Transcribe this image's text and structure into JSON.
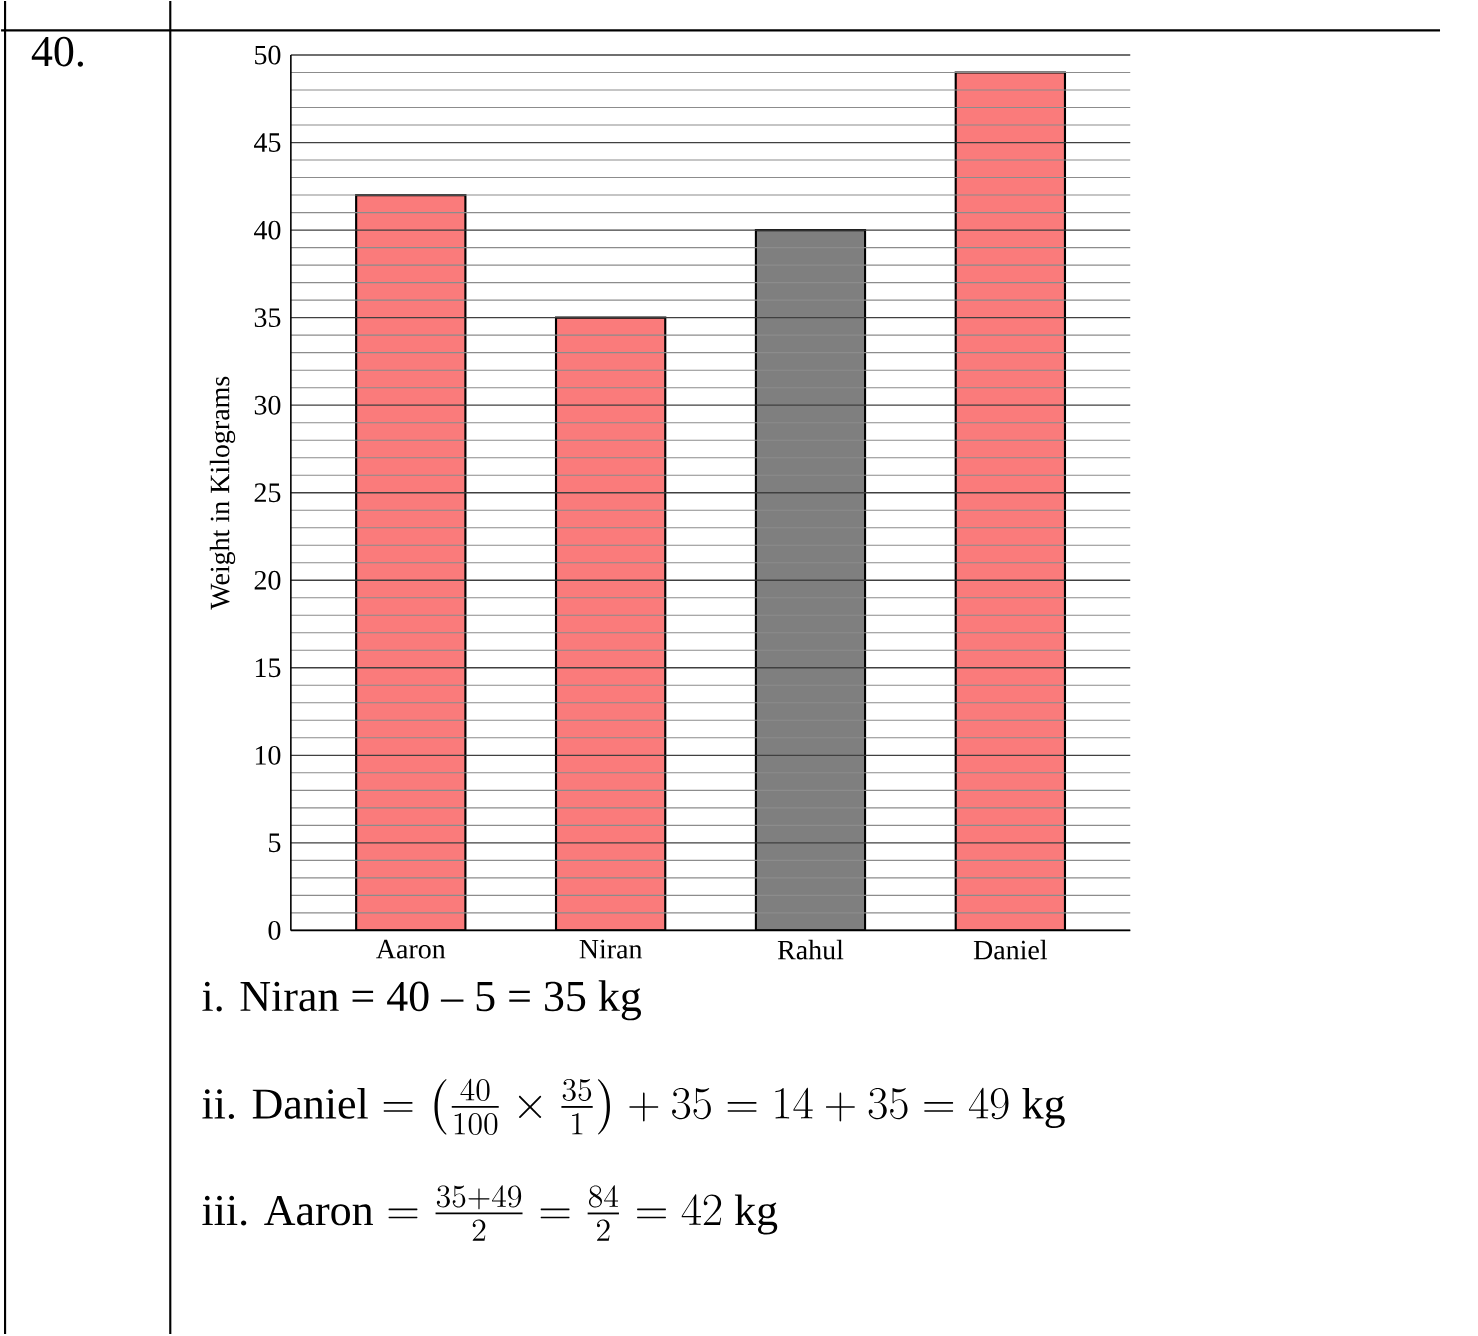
{
  "chart_data": {
    "type": "bar",
    "ylabel": "Weight in Kilograms",
    "categories": [
      "Aaron",
      "Niran",
      "Rahul",
      "Daniel"
    ],
    "values": [
      42,
      35,
      40,
      49
    ],
    "colors": [
      "#fa7b7b",
      "#fa7b7b",
      "#7f7f7f",
      "#fa7b7b"
    ],
    "ylim": [
      0,
      50
    ],
    "yticks": [
      0,
      5,
      10,
      15,
      20,
      25,
      30,
      35,
      40,
      45,
      50
    ],
    "grid": "y",
    "annotations": [
      "40.",
      "i. Niran = 40 – 5 = 35 kg",
      "\\mbox{ii. Daniel} = \\left(\\frac{40}{100}\\times\\frac{35}{1}\\right)+35=14+35=49\\mbox{ kg}",
      "\\mbox{iii. Aaron} = \\frac{35+49}{2}=\\frac{84}{2}=42\\mbox{ kg}"
    ]
  }
}
